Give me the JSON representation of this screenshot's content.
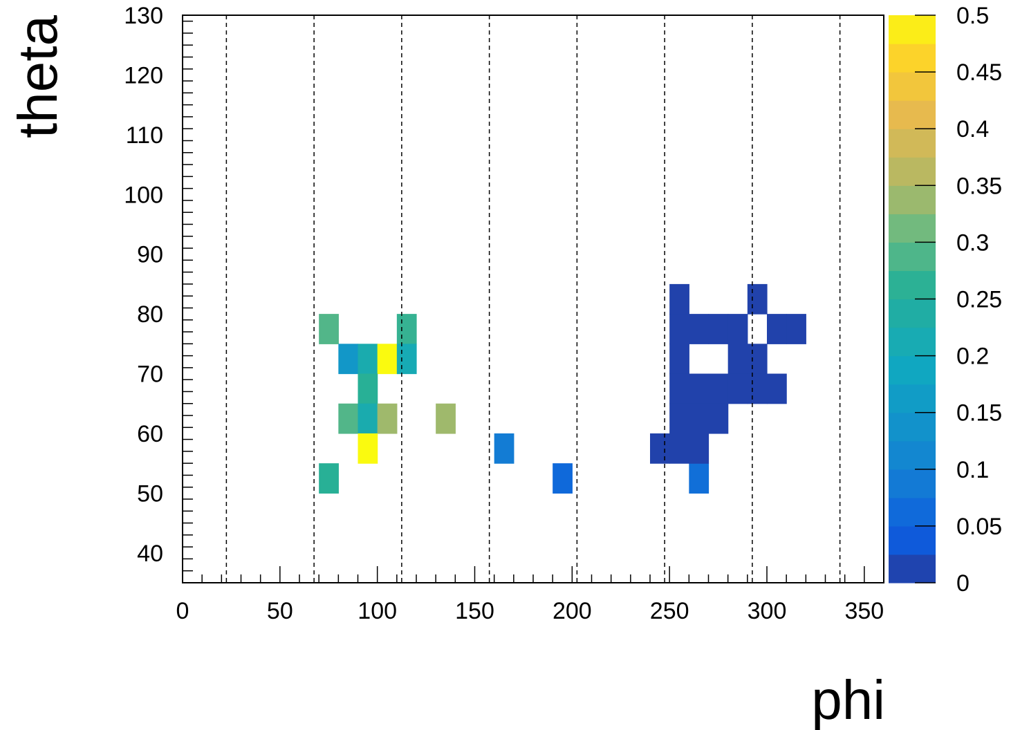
{
  "chart_data": {
    "type": "heatmap",
    "xlabel": "phi",
    "ylabel": "theta",
    "xlim": [
      0,
      360
    ],
    "ylim": [
      35,
      130
    ],
    "x_ticks": [
      0,
      50,
      100,
      150,
      200,
      250,
      300,
      350
    ],
    "y_ticks": [
      40,
      50,
      60,
      70,
      80,
      90,
      100,
      110,
      120,
      130
    ],
    "bin_size": {
      "phi": 10,
      "theta": 5
    },
    "z_range": [
      0,
      0.5
    ],
    "colorbar_ticks": [
      "0",
      "0.05",
      "0.1",
      "0.15",
      "0.2",
      "0.25",
      "0.3",
      "0.35",
      "0.4",
      "0.45",
      "0.5"
    ],
    "vertical_dashed_lines": [
      22.5,
      67.5,
      112.5,
      157.5,
      202.5,
      247.5,
      292.5,
      337.5
    ],
    "cells": [
      {
        "phi": 70,
        "theta": 75,
        "value": 0.29
      },
      {
        "phi": 110,
        "theta": 75,
        "value": 0.27
      },
      {
        "phi": 80,
        "theta": 70,
        "value": 0.15
      },
      {
        "phi": 90,
        "theta": 70,
        "value": 0.22
      },
      {
        "phi": 100,
        "theta": 70,
        "value": 0.5
      },
      {
        "phi": 110,
        "theta": 70,
        "value": 0.21
      },
      {
        "phi": 90,
        "theta": 65,
        "value": 0.26
      },
      {
        "phi": 80,
        "theta": 60,
        "value": 0.29
      },
      {
        "phi": 90,
        "theta": 60,
        "value": 0.22
      },
      {
        "phi": 100,
        "theta": 60,
        "value": 0.34
      },
      {
        "phi": 130,
        "theta": 60,
        "value": 0.34
      },
      {
        "phi": 90,
        "theta": 55,
        "value": 0.5
      },
      {
        "phi": 160,
        "theta": 55,
        "value": 0.09
      },
      {
        "phi": 70,
        "theta": 50,
        "value": 0.26
      },
      {
        "phi": 190,
        "theta": 50,
        "value": 0.06
      },
      {
        "phi": 260,
        "theta": 50,
        "value": 0.07
      },
      {
        "phi": 250,
        "theta": 80,
        "value": 0.01
      },
      {
        "phi": 290,
        "theta": 80,
        "value": 0.01
      },
      {
        "phi": 250,
        "theta": 75,
        "value": 0.01
      },
      {
        "phi": 260,
        "theta": 75,
        "value": 0.01
      },
      {
        "phi": 270,
        "theta": 75,
        "value": 0.01
      },
      {
        "phi": 280,
        "theta": 75,
        "value": 0.01
      },
      {
        "phi": 300,
        "theta": 75,
        "value": 0.01
      },
      {
        "phi": 310,
        "theta": 75,
        "value": 0.01
      },
      {
        "phi": 250,
        "theta": 70,
        "value": 0.01
      },
      {
        "phi": 280,
        "theta": 70,
        "value": 0.01
      },
      {
        "phi": 290,
        "theta": 70,
        "value": 0.01
      },
      {
        "phi": 250,
        "theta": 65,
        "value": 0.01
      },
      {
        "phi": 260,
        "theta": 65,
        "value": 0.01
      },
      {
        "phi": 270,
        "theta": 65,
        "value": 0.01
      },
      {
        "phi": 280,
        "theta": 65,
        "value": 0.01
      },
      {
        "phi": 290,
        "theta": 65,
        "value": 0.01
      },
      {
        "phi": 300,
        "theta": 65,
        "value": 0.01
      },
      {
        "phi": 250,
        "theta": 60,
        "value": 0.01
      },
      {
        "phi": 260,
        "theta": 60,
        "value": 0.01
      },
      {
        "phi": 270,
        "theta": 60,
        "value": 0.01
      },
      {
        "phi": 240,
        "theta": 55,
        "value": 0.01
      },
      {
        "phi": 250,
        "theta": 55,
        "value": 0.01
      },
      {
        "phi": 260,
        "theta": 55,
        "value": 0.01
      }
    ]
  }
}
